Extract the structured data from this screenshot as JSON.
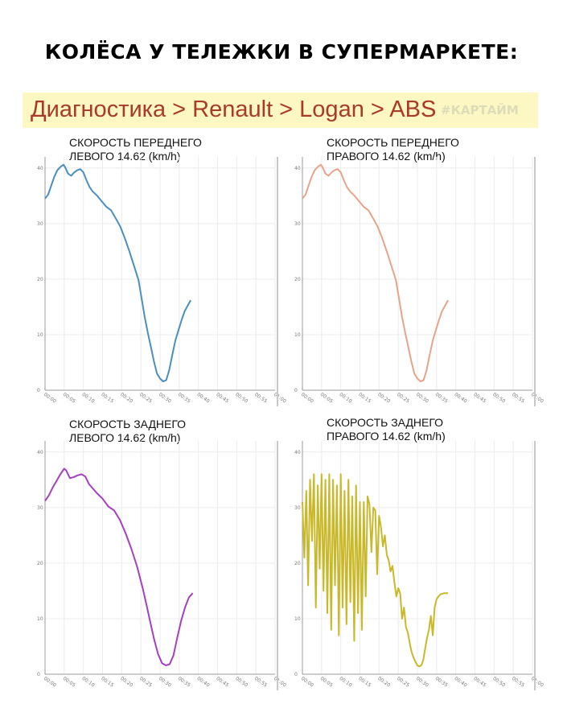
{
  "headline": "КОЛЁСА У ТЕЛЕЖКИ В СУПЕРМАРКЕТЕ:",
  "banner": {
    "path_text": "Диагностика > Renault > Logan > ABS",
    "tag": "#КАРТАЙМ",
    "bg_color": "#fdf8c3",
    "text_color": "#a93a2a"
  },
  "chart_data": [
    {
      "type": "line",
      "title_lines": [
        "СКОРОСТЬ ПЕРЕДНЕГО",
        "ЛЕВОГО 14.62 (km/h)"
      ],
      "color": "#4a8fc0",
      "x_ticks": [
        "00:00",
        "00:05",
        "00:10",
        "00:15",
        "00:20",
        "00:25",
        "00:30",
        "00:35",
        "00:40",
        "00:45",
        "00:50",
        "00:55",
        "01:00"
      ],
      "y_ticks": [
        "0",
        "10",
        "20",
        "30",
        "40"
      ],
      "xlim": [
        0,
        60
      ],
      "ylim": [
        0,
        42
      ],
      "grid": true,
      "series": [
        {
          "x": [
            0,
            0.8,
            1.6,
            2.4,
            3.2,
            4,
            4.8,
            5.2,
            6,
            6.8,
            7.6,
            8.4,
            9.2,
            10,
            10.8,
            11.6,
            12.4,
            13.6,
            14.8,
            16,
            17.2,
            18.4,
            19.6,
            20.8,
            22,
            23.2,
            24.4,
            25.2,
            26,
            26.8,
            27.6,
            28.4,
            29.2,
            30,
            30.8,
            31.6,
            32.4,
            33.2,
            34,
            34.8,
            35.6,
            36.4,
            37.2,
            38
          ],
          "y": [
            34.5,
            35.2,
            36.8,
            38.4,
            39.6,
            40.2,
            40.6,
            40.2,
            39,
            38.6,
            39.2,
            39.6,
            39.8,
            39.2,
            37.8,
            36.6,
            35.8,
            35,
            34,
            33,
            32.4,
            31,
            29.5,
            27.4,
            25,
            22.4,
            19.8,
            16.5,
            13.2,
            10.4,
            7.8,
            5.2,
            3,
            2.1,
            1.6,
            1.8,
            3.6,
            6.4,
            9,
            10.8,
            12.6,
            14.2,
            15.2,
            16.2
          ]
        }
      ]
    },
    {
      "type": "line",
      "title_lines": [
        "СКОРОСТЬ ПЕРЕДНЕГО",
        "ПРАВОГО 14.62 (km/h)"
      ],
      "color": "#e8a38a",
      "x_ticks": [
        "00:00",
        "00:05",
        "00:10",
        "00:15",
        "00:20",
        "00:25",
        "00:30",
        "00:35",
        "00:40",
        "00:45",
        "00:50",
        "00:55",
        "01:00"
      ],
      "y_ticks": [
        "0",
        "10",
        "20",
        "30",
        "40"
      ],
      "xlim": [
        0,
        60
      ],
      "ylim": [
        0,
        42
      ],
      "grid": true,
      "series": [
        {
          "x": [
            0,
            0.8,
            1.6,
            2.4,
            3.2,
            4,
            4.8,
            5.2,
            6,
            6.8,
            7.6,
            8.4,
            9.2,
            10,
            10.8,
            11.6,
            12.4,
            13.6,
            14.8,
            16,
            17.2,
            18.4,
            19.6,
            20.8,
            22,
            23.2,
            24.4,
            25.2,
            26,
            26.8,
            27.6,
            28.4,
            29.2,
            30,
            30.8,
            31.6,
            32.4,
            33.2,
            34,
            34.8,
            35.6,
            36.4,
            37.2,
            38
          ],
          "y": [
            34.5,
            35.2,
            36.8,
            38.4,
            39.6,
            40.2,
            40.6,
            40.2,
            39,
            38.6,
            39.2,
            39.6,
            39.8,
            39.2,
            37.8,
            36.6,
            35.8,
            35,
            34,
            33,
            32.4,
            31,
            29.5,
            27.4,
            25,
            22.4,
            19.8,
            16.5,
            13.2,
            10.4,
            7.8,
            5.2,
            3,
            2.1,
            1.6,
            1.8,
            3.6,
            6.4,
            9,
            10.8,
            12.6,
            14.2,
            15.2,
            16.2
          ]
        }
      ]
    },
    {
      "type": "line",
      "title_lines": [
        "СКОРОСТЬ ЗАДНЕГО",
        "ЛЕВОГО 14.62 (km/h)"
      ],
      "color": "#a63fbf",
      "x_ticks": [
        "00:00",
        "00:05",
        "00:10",
        "00:15",
        "00:20",
        "00:25",
        "00:30",
        "00:35",
        "00:40",
        "00:45",
        "00:50",
        "00:55",
        "01:00"
      ],
      "y_ticks": [
        "0",
        "10",
        "20",
        "30",
        "40"
      ],
      "xlim": [
        0,
        60
      ],
      "ylim": [
        0,
        42
      ],
      "grid": true,
      "series": [
        {
          "x": [
            0,
            1,
            2,
            3,
            4,
            5,
            5.5,
            6.5,
            7.5,
            8.5,
            9.5,
            10.5,
            11.5,
            12.5,
            13.5,
            15,
            16.5,
            18,
            19.5,
            21,
            22.5,
            24,
            25.5,
            26.5,
            27.5,
            28.5,
            29.5,
            30.5,
            31.5,
            32.5,
            33.5,
            34.5,
            35.5,
            36.5,
            37.5,
            38.5
          ],
          "y": [
            31.2,
            32.2,
            33.6,
            34.8,
            36,
            37,
            36.7,
            35.3,
            35.5,
            35.8,
            36,
            35.6,
            34.2,
            33.4,
            32.6,
            31.6,
            30.2,
            29.5,
            27.8,
            25.4,
            22.6,
            19.4,
            15.4,
            12.4,
            9.2,
            6.2,
            3.6,
            2,
            1.6,
            1.8,
            3.4,
            6.6,
            9.6,
            12,
            13.8,
            14.6
          ]
        }
      ]
    },
    {
      "type": "line",
      "title_lines": [
        "СКОРОСТЬ ЗАДНЕГО",
        "ПРАВОГО 14.62 (km/h)"
      ],
      "color": "#c9b92a",
      "x_ticks": [
        "00:00",
        "00:05",
        "00:10",
        "00:15",
        "00:20",
        "00:25",
        "00:30",
        "00:35",
        "00:40",
        "00:45",
        "00:50",
        "00:55",
        "01:00"
      ],
      "y_ticks": [
        "0",
        "10",
        "20",
        "30",
        "40"
      ],
      "xlim": [
        0,
        60
      ],
      "ylim": [
        0,
        42
      ],
      "grid": true,
      "series": [
        {
          "x": [
            0,
            0.5,
            1,
            1.5,
            2,
            2.5,
            3,
            3.5,
            4,
            4.5,
            5,
            5.5,
            6,
            6.5,
            7,
            7.5,
            8,
            8.5,
            9,
            9.5,
            10,
            10.5,
            11,
            11.5,
            12,
            12.5,
            13,
            13.5,
            14,
            14.5,
            15,
            15.5,
            16,
            16.5,
            17,
            17.5,
            18,
            18.5,
            19,
            19.5,
            20,
            20.5,
            21,
            21.5,
            22,
            22.5,
            23,
            23.5,
            24,
            24.5,
            25,
            25.5,
            26,
            26.5,
            27,
            27.5,
            28,
            28.5,
            29,
            29.5,
            30,
            30.5,
            31,
            31.5,
            32,
            32.5,
            33,
            33.5,
            34,
            34.5,
            35,
            35.5,
            36,
            36.5,
            37,
            37.5,
            38
          ],
          "y": [
            31,
            21,
            33,
            16,
            35,
            24,
            36,
            12,
            34,
            19,
            36,
            15,
            35,
            11,
            36,
            8,
            35,
            16,
            34,
            7,
            36,
            12,
            33,
            9,
            35,
            13,
            32,
            6,
            34,
            11,
            31,
            8,
            31,
            14,
            32,
            30.5,
            22,
            30,
            29.5,
            18,
            28.5,
            26.5,
            23,
            25,
            21.5,
            20.5,
            18.5,
            19.5,
            16.5,
            14,
            15.5,
            14.5,
            10,
            12,
            8.5,
            7.5,
            5.5,
            4,
            3,
            2.2,
            1.6,
            1.4,
            1.6,
            2.5,
            4.5,
            6.5,
            8,
            10.5,
            7,
            12,
            13.5,
            14,
            14.4,
            14.5,
            14.6,
            14.6,
            14.6
          ]
        }
      ]
    }
  ]
}
